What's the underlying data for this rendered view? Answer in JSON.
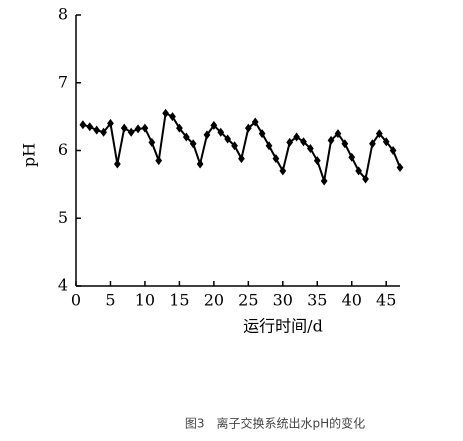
{
  "chart_data": {
    "type": "line",
    "caption": "图3　离子交换系统出水pH的变化",
    "xlabel": "运行时间/d",
    "ylabel": "pH",
    "x": [
      1,
      2,
      3,
      4,
      5,
      6,
      7,
      8,
      9,
      10,
      11,
      12,
      13,
      14,
      15,
      16,
      17,
      18,
      19,
      20,
      21,
      22,
      23,
      24,
      25,
      26,
      27,
      28,
      29,
      30,
      31,
      32,
      33,
      34,
      35,
      36,
      37,
      38,
      39,
      40,
      41,
      42,
      43,
      44,
      45,
      46,
      47
    ],
    "series": [
      {
        "name": "pH",
        "color": "#000000",
        "values": [
          6.38,
          6.35,
          6.3,
          6.27,
          6.4,
          5.8,
          6.33,
          6.27,
          6.32,
          6.33,
          6.12,
          5.85,
          6.55,
          6.5,
          6.33,
          6.2,
          6.1,
          5.8,
          6.23,
          6.37,
          6.27,
          6.17,
          6.07,
          5.88,
          6.33,
          6.42,
          6.25,
          6.07,
          5.88,
          5.7,
          6.12,
          6.2,
          6.13,
          6.03,
          5.85,
          5.55,
          6.15,
          6.25,
          6.1,
          5.9,
          5.7,
          5.58,
          6.1,
          6.25,
          6.13,
          6.0,
          5.75
        ]
      }
    ],
    "xlim": [
      0,
      47
    ],
    "ylim": [
      4,
      8
    ],
    "xticks": [
      0,
      5,
      10,
      15,
      20,
      25,
      30,
      35,
      40,
      45
    ],
    "yticks": [
      4,
      5,
      6,
      7,
      8
    ]
  }
}
